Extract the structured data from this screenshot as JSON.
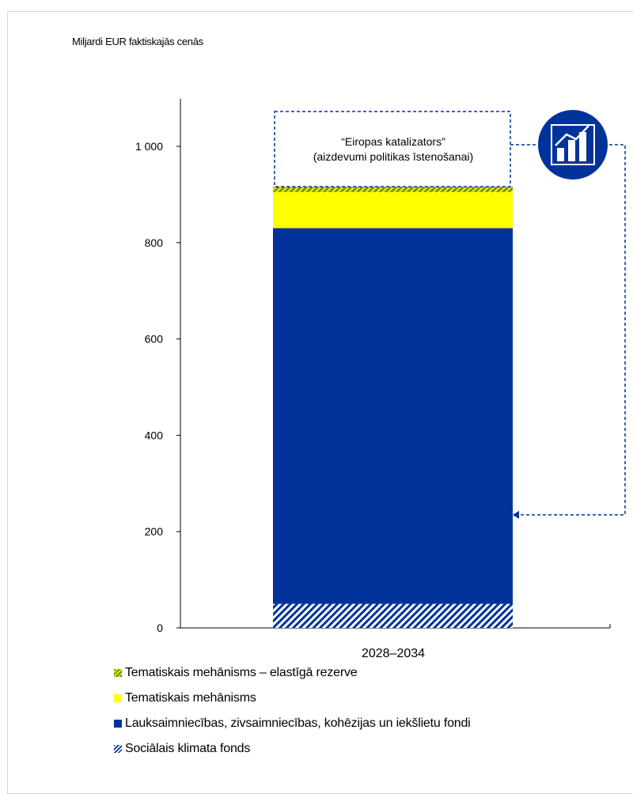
{
  "chart_data": {
    "type": "bar",
    "stacked": true,
    "ylabel": "Miljardi EUR faktiskajās cenās",
    "categories": [
      "2028–2034"
    ],
    "ylim": [
      0,
      1100
    ],
    "yticks": [
      0,
      200,
      400,
      600,
      800,
      1000
    ],
    "ytick_labels": [
      "0",
      "200",
      "400",
      "600",
      "800",
      "1 000"
    ],
    "grid": false,
    "legend_position": "bottom",
    "series": [
      {
        "name": "Sociālais klimata fonds",
        "values": [
          50
        ],
        "color": "#003399",
        "pattern": "hatch"
      },
      {
        "name": "Lauksaimniecības, zivsaimniecības, kohēzijas un iekšlietu fondi",
        "values": [
          780
        ],
        "color": "#003399",
        "pattern": "solid"
      },
      {
        "name": "Tematiskais mehānisms",
        "values": [
          75
        ],
        "color": "#ffff00",
        "pattern": "solid"
      },
      {
        "name": "Tematiskais mehānisms – elastīgā rezerve",
        "values": [
          11
        ],
        "color": "#6b8e23",
        "pattern": "hatch"
      }
    ],
    "annotation": {
      "line1": "“Eiropas katalizators”",
      "line2": "(aizdevumi politikas īstenošanai)",
      "icon": "bar-chart-growth-icon"
    }
  },
  "legend": [
    {
      "label": "Tematiskais mehānisms – elastīgā rezerve",
      "swatch": "hatch-green"
    },
    {
      "label": "Tematiskais mehānisms",
      "swatch": "yellow"
    },
    {
      "label": "Lauksaimniecības, zivsaimniecības, kohēzijas un iekšlietu fondi",
      "swatch": "blue"
    },
    {
      "label": "Sociālais klimata fonds",
      "swatch": "hatch-blue"
    }
  ]
}
